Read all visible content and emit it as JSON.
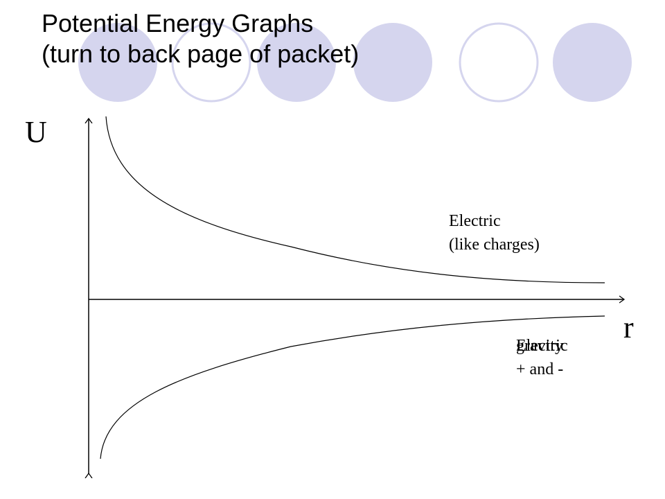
{
  "slide": {
    "title_line1": "Potential Energy Graphs",
    "title_line2": "(turn to back page of packet)"
  },
  "diagram": {
    "y_axis_label": "U",
    "x_axis_label": "r",
    "upper_curve": {
      "label_line1": "Electric",
      "label_line2": "(like charges)"
    },
    "lower_curve": {
      "label_overlap_a": "Electric",
      "label_overlap_b": "gravity",
      "label_line2": "+ and -"
    }
  },
  "colors": {
    "circle_fill": "#d5d5ee",
    "circle_stroke": "#d5d5ee",
    "line": "#000000"
  }
}
